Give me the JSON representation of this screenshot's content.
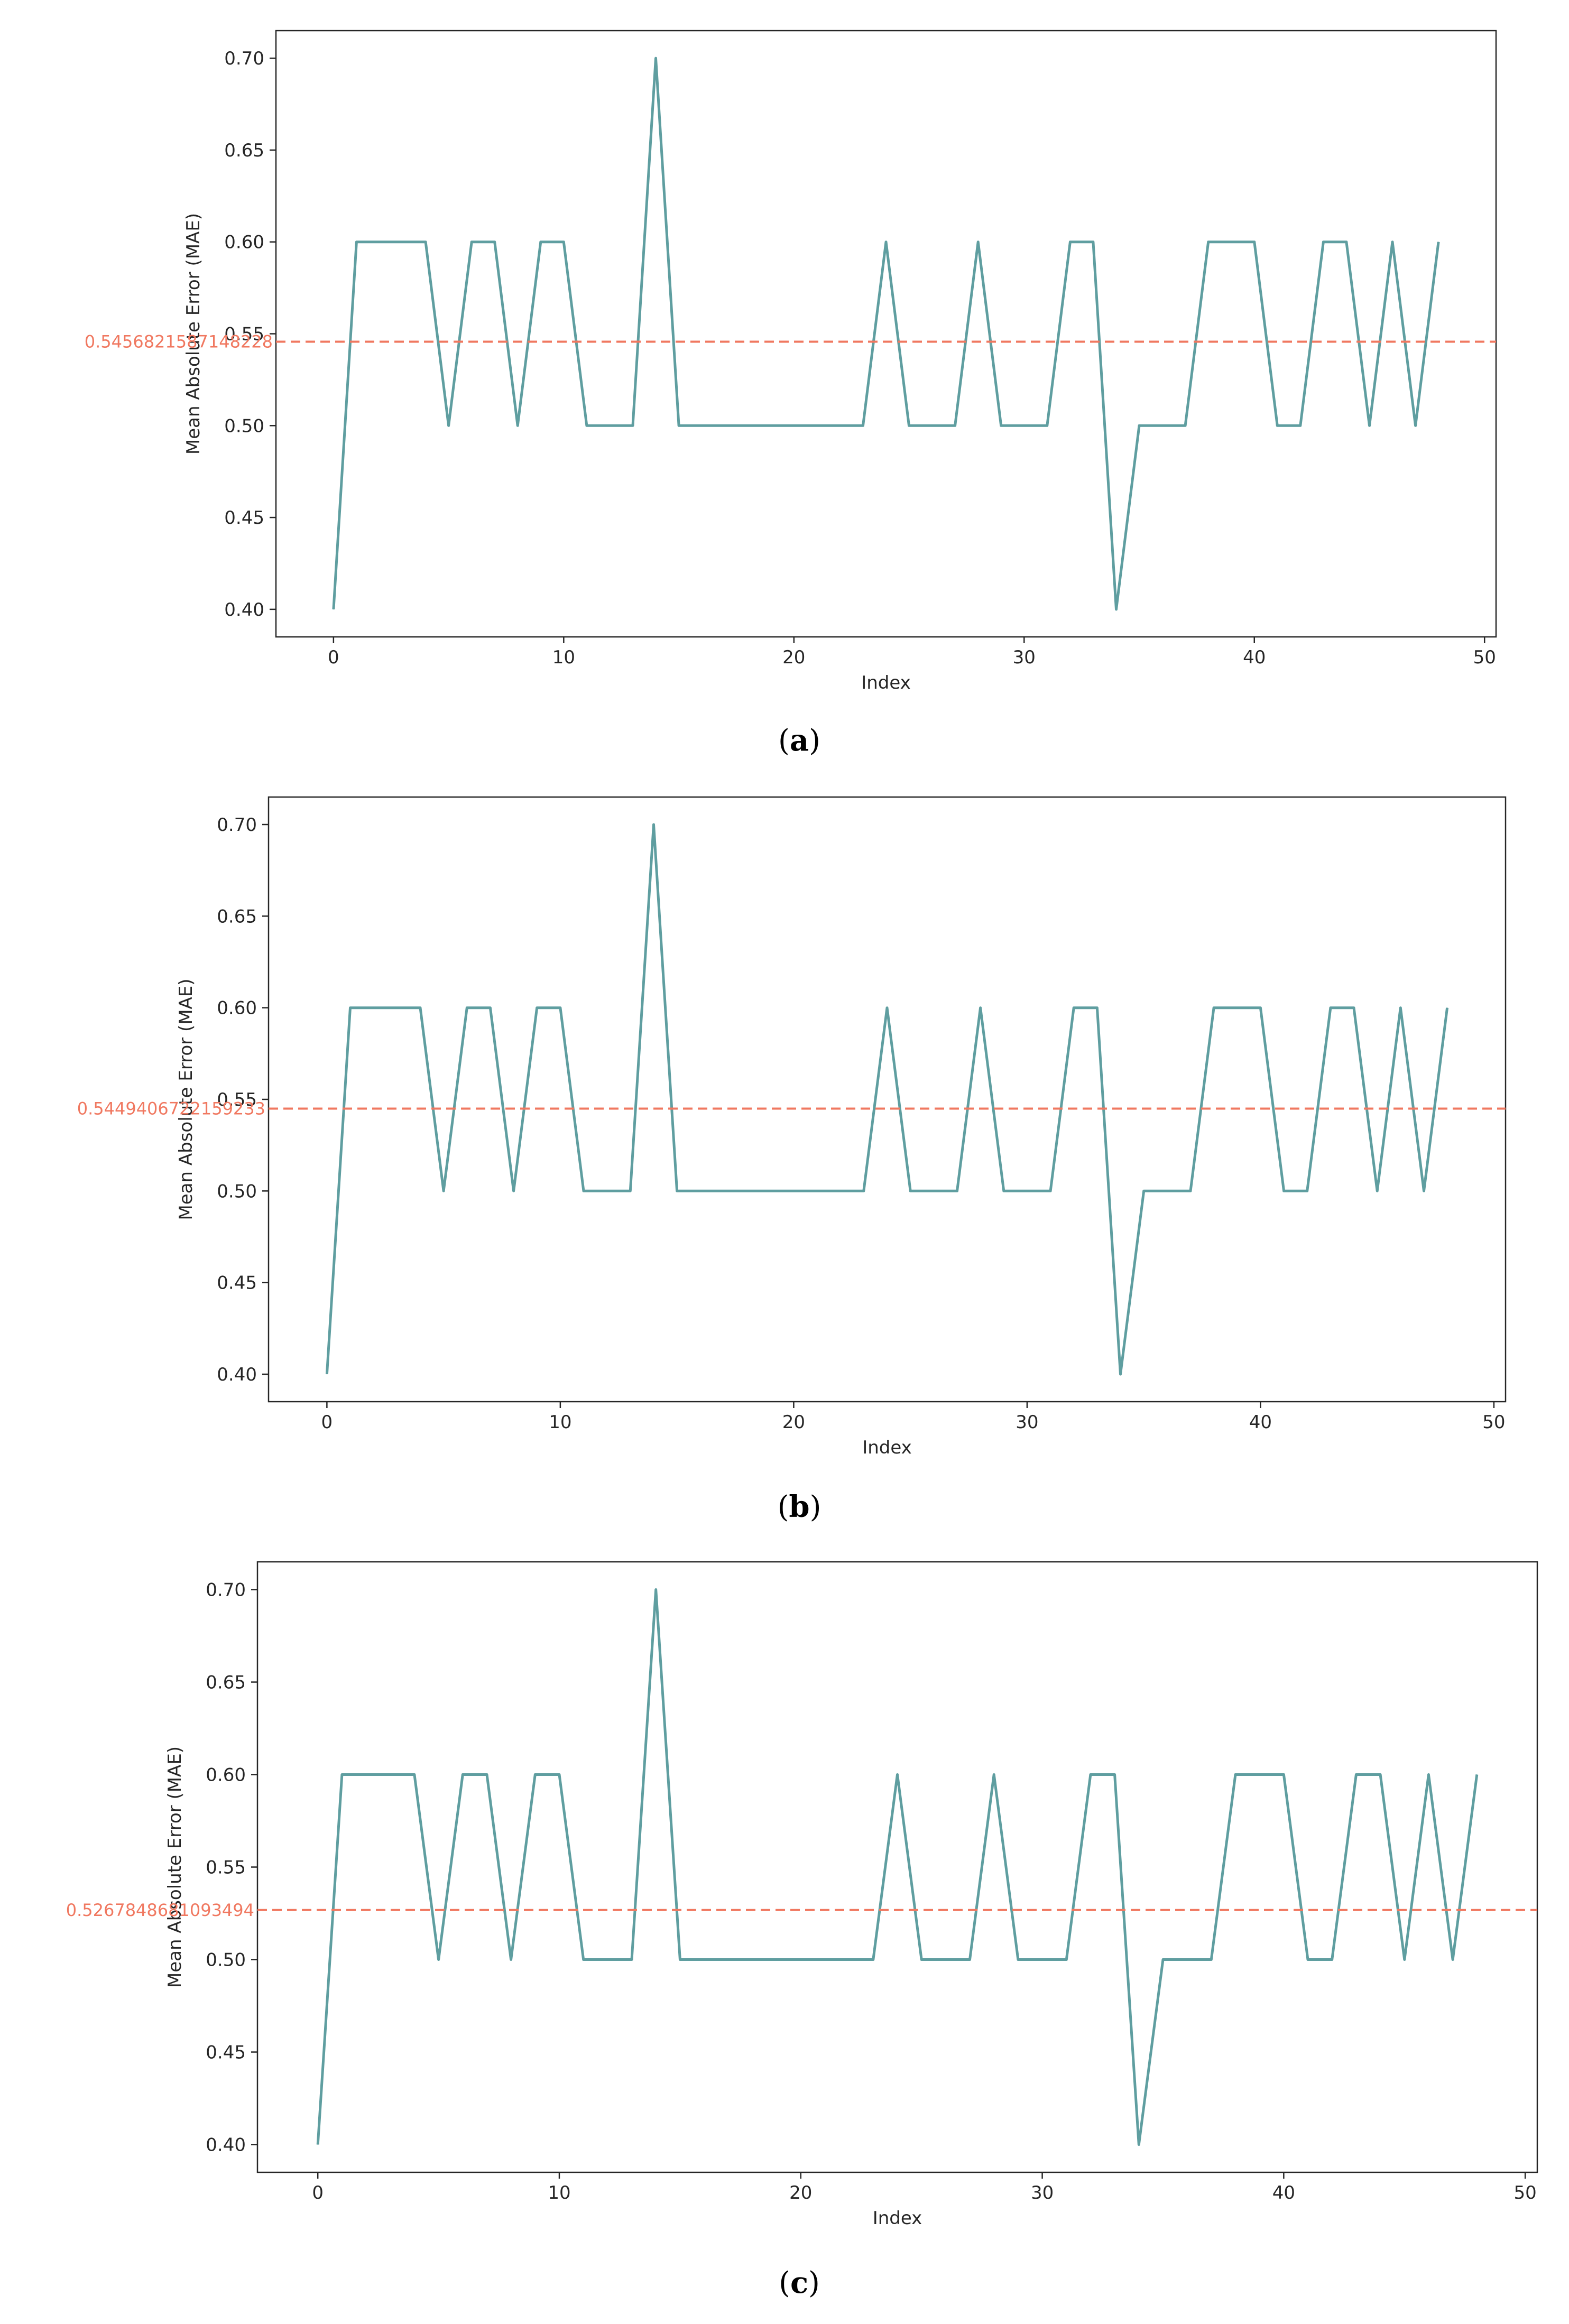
{
  "chart_data": [
    {
      "type": "line",
      "panel_label": "a",
      "xlabel": "Index",
      "ylabel": "Mean Absolute Error (MAE)",
      "xlim": [
        -2.5,
        50.5
      ],
      "ylim": [
        0.385,
        0.715
      ],
      "xticks": [
        0,
        10,
        20,
        30,
        40,
        50
      ],
      "yticks": [
        "0.40",
        "0.45",
        "0.50",
        "0.55",
        "0.60",
        "0.65",
        "0.70"
      ],
      "grid": false,
      "series": [
        {
          "x": [
            0,
            1,
            2,
            3,
            4,
            5,
            6,
            7,
            8,
            9,
            10,
            11,
            12,
            13,
            14,
            15,
            16,
            17,
            18,
            19,
            20,
            21,
            22,
            23,
            24,
            25,
            26,
            27,
            28,
            29,
            30,
            31,
            32,
            33,
            34,
            35,
            36,
            37,
            38,
            39,
            40,
            41,
            42,
            43,
            44,
            45,
            46,
            47,
            48
          ],
          "values": [
            0.4,
            0.6,
            0.6,
            0.6,
            0.6,
            0.5,
            0.6,
            0.6,
            0.5,
            0.6,
            0.6,
            0.5,
            0.5,
            0.5,
            0.7,
            0.5,
            0.5,
            0.5,
            0.5,
            0.5,
            0.5,
            0.5,
            0.5,
            0.5,
            0.6,
            0.5,
            0.5,
            0.5,
            0.6,
            0.5,
            0.5,
            0.5,
            0.6,
            0.6,
            0.4,
            0.5,
            0.5,
            0.5,
            0.6,
            0.6,
            0.6,
            0.5,
            0.5,
            0.6,
            0.6,
            0.5,
            0.6,
            0.5,
            0.6
          ],
          "color": "#5f9ea0"
        }
      ],
      "reference_line": {
        "y": 0.5456821587148228,
        "label": "0.5456821587148228",
        "color": "#f07860"
      }
    },
    {
      "type": "line",
      "panel_label": "b",
      "xlabel": "Index",
      "ylabel": "Mean Absolute Error (MAE)",
      "xlim": [
        -2.5,
        50.5
      ],
      "ylim": [
        0.385,
        0.715
      ],
      "xticks": [
        0,
        10,
        20,
        30,
        40,
        50
      ],
      "yticks": [
        "0.40",
        "0.45",
        "0.50",
        "0.55",
        "0.60",
        "0.65",
        "0.70"
      ],
      "grid": false,
      "series": [
        {
          "x": [
            0,
            1,
            2,
            3,
            4,
            5,
            6,
            7,
            8,
            9,
            10,
            11,
            12,
            13,
            14,
            15,
            16,
            17,
            18,
            19,
            20,
            21,
            22,
            23,
            24,
            25,
            26,
            27,
            28,
            29,
            30,
            31,
            32,
            33,
            34,
            35,
            36,
            37,
            38,
            39,
            40,
            41,
            42,
            43,
            44,
            45,
            46,
            47,
            48
          ],
          "values": [
            0.4,
            0.6,
            0.6,
            0.6,
            0.6,
            0.5,
            0.6,
            0.6,
            0.5,
            0.6,
            0.6,
            0.5,
            0.5,
            0.5,
            0.7,
            0.5,
            0.5,
            0.5,
            0.5,
            0.5,
            0.5,
            0.5,
            0.5,
            0.5,
            0.6,
            0.5,
            0.5,
            0.5,
            0.6,
            0.5,
            0.5,
            0.5,
            0.6,
            0.6,
            0.4,
            0.5,
            0.5,
            0.5,
            0.6,
            0.6,
            0.6,
            0.5,
            0.5,
            0.6,
            0.6,
            0.5,
            0.6,
            0.5,
            0.6
          ],
          "color": "#5f9ea0"
        }
      ],
      "reference_line": {
        "y": 0.5449406722159233,
        "label": "0.5449406722159233",
        "color": "#f07860"
      }
    },
    {
      "type": "line",
      "panel_label": "c",
      "xlabel": "Index",
      "ylabel": "Mean Absolute Error (MAE)",
      "xlim": [
        -2.5,
        50.5
      ],
      "ylim": [
        0.385,
        0.715
      ],
      "xticks": [
        0,
        10,
        20,
        30,
        40,
        50
      ],
      "yticks": [
        "0.40",
        "0.45",
        "0.50",
        "0.55",
        "0.60",
        "0.65",
        "0.70"
      ],
      "grid": false,
      "series": [
        {
          "x": [
            0,
            1,
            2,
            3,
            4,
            5,
            6,
            7,
            8,
            9,
            10,
            11,
            12,
            13,
            14,
            15,
            16,
            17,
            18,
            19,
            20,
            21,
            22,
            23,
            24,
            25,
            26,
            27,
            28,
            29,
            30,
            31,
            32,
            33,
            34,
            35,
            36,
            37,
            38,
            39,
            40,
            41,
            42,
            43,
            44,
            45,
            46,
            47,
            48
          ],
          "values": [
            0.4,
            0.6,
            0.6,
            0.6,
            0.6,
            0.5,
            0.6,
            0.6,
            0.5,
            0.6,
            0.6,
            0.5,
            0.5,
            0.5,
            0.7,
            0.5,
            0.5,
            0.5,
            0.5,
            0.5,
            0.5,
            0.5,
            0.5,
            0.5,
            0.6,
            0.5,
            0.5,
            0.5,
            0.6,
            0.5,
            0.5,
            0.5,
            0.6,
            0.6,
            0.4,
            0.5,
            0.5,
            0.5,
            0.6,
            0.6,
            0.6,
            0.5,
            0.5,
            0.6,
            0.6,
            0.5,
            0.6,
            0.5,
            0.6
          ],
          "color": "#5f9ea0"
        }
      ],
      "reference_line": {
        "y": 0.5267848681093494,
        "label": "0.5267848681093494",
        "color": "#f07860"
      }
    }
  ]
}
